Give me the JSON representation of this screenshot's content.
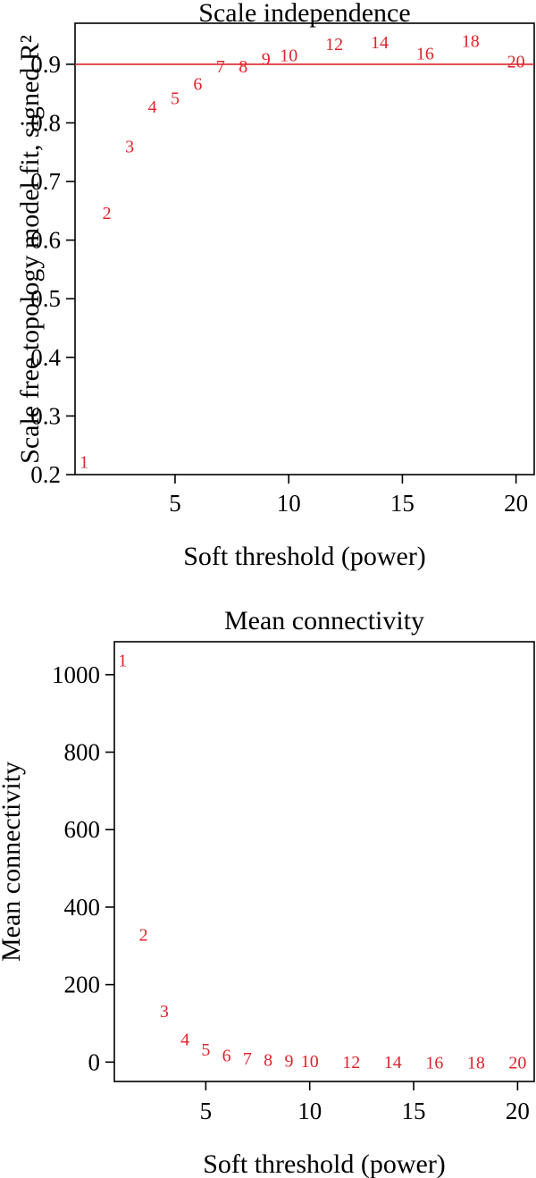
{
  "chart_data": [
    {
      "type": "scatter",
      "title": "Scale independence",
      "xlabel": "Soft threshold (power)",
      "ylabel": "Scale free topology model fit, signed R²",
      "xlim": [
        0.6,
        20.8
      ],
      "ylim": [
        0.2,
        0.97
      ],
      "xticks": [
        5,
        10,
        15,
        20
      ],
      "yticks": [
        0.2,
        0.3,
        0.4,
        0.5,
        0.6,
        0.7,
        0.8,
        0.9
      ],
      "grid": false,
      "label_color": "#e0232b",
      "reference_line": {
        "y": 0.9,
        "color": "#e0232b"
      },
      "points": [
        {
          "x": 1,
          "y": 0.222,
          "label": "1"
        },
        {
          "x": 2,
          "y": 0.647,
          "label": "2"
        },
        {
          "x": 3,
          "y": 0.76,
          "label": "3"
        },
        {
          "x": 4,
          "y": 0.828,
          "label": "4"
        },
        {
          "x": 5,
          "y": 0.843,
          "label": "5"
        },
        {
          "x": 6,
          "y": 0.867,
          "label": "6"
        },
        {
          "x": 7,
          "y": 0.897,
          "label": "7"
        },
        {
          "x": 8,
          "y": 0.897,
          "label": "8"
        },
        {
          "x": 9,
          "y": 0.91,
          "label": "9"
        },
        {
          "x": 10,
          "y": 0.916,
          "label": "10"
        },
        {
          "x": 12,
          "y": 0.935,
          "label": "12"
        },
        {
          "x": 14,
          "y": 0.938,
          "label": "14"
        },
        {
          "x": 16,
          "y": 0.919,
          "label": "16"
        },
        {
          "x": 18,
          "y": 0.94,
          "label": "18"
        },
        {
          "x": 20,
          "y": 0.905,
          "label": "20"
        }
      ]
    },
    {
      "type": "scatter",
      "title": "Mean connectivity",
      "xlabel": "Soft threshold (power)",
      "ylabel": "Mean connectivity",
      "xlim": [
        0.6,
        20.8
      ],
      "ylim": [
        -50,
        1085
      ],
      "xticks": [
        5,
        10,
        15,
        20
      ],
      "yticks": [
        0,
        200,
        400,
        600,
        800,
        1000
      ],
      "grid": false,
      "label_color": "#e0232b",
      "points": [
        {
          "x": 1,
          "y": 1038,
          "label": "1"
        },
        {
          "x": 2,
          "y": 330,
          "label": "2"
        },
        {
          "x": 3,
          "y": 132,
          "label": "3"
        },
        {
          "x": 4,
          "y": 60,
          "label": "4"
        },
        {
          "x": 5,
          "y": 33,
          "label": "5"
        },
        {
          "x": 6,
          "y": 18,
          "label": "6"
        },
        {
          "x": 7,
          "y": 10,
          "label": "7"
        },
        {
          "x": 8,
          "y": 6,
          "label": "8"
        },
        {
          "x": 9,
          "y": 4,
          "label": "9"
        },
        {
          "x": 10,
          "y": 3,
          "label": "10"
        },
        {
          "x": 12,
          "y": 1,
          "label": "12"
        },
        {
          "x": 14,
          "y": 1,
          "label": "14"
        },
        {
          "x": 16,
          "y": 0,
          "label": "16"
        },
        {
          "x": 18,
          "y": 0,
          "label": "18"
        },
        {
          "x": 20,
          "y": 0,
          "label": "20"
        }
      ]
    }
  ]
}
